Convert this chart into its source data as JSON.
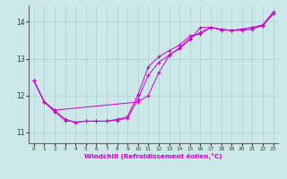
{
  "xlabel": "Windchill (Refroidissement éolien,°C)",
  "xlim": [
    -0.5,
    23.5
  ],
  "ylim": [
    10.7,
    14.45
  ],
  "yticks": [
    11,
    12,
    13,
    14
  ],
  "xticks": [
    0,
    1,
    2,
    3,
    4,
    5,
    6,
    7,
    8,
    9,
    10,
    11,
    12,
    13,
    14,
    15,
    16,
    17,
    18,
    19,
    20,
    21,
    22,
    23
  ],
  "bg_color": "#cce8e8",
  "grid_color": "#aad0d0",
  "line_color": "#cc00cc",
  "line1_x": [
    0,
    1,
    2,
    3,
    4,
    5,
    6,
    7,
    8,
    9,
    10,
    11,
    12,
    13,
    14,
    15,
    16,
    17,
    18,
    19,
    20,
    21,
    22,
    23
  ],
  "line1_y": [
    12.4,
    11.82,
    11.55,
    11.32,
    11.27,
    11.3,
    11.3,
    11.3,
    11.32,
    11.38,
    11.9,
    12.55,
    12.9,
    13.1,
    13.27,
    13.52,
    13.85,
    13.85,
    13.8,
    13.77,
    13.77,
    13.8,
    13.9,
    14.22
  ],
  "line2_x": [
    0,
    1,
    2,
    10,
    11,
    12,
    13,
    14,
    15,
    16,
    17,
    18,
    19,
    20,
    21,
    22,
    23
  ],
  "line2_y": [
    12.4,
    11.82,
    11.6,
    11.82,
    12.0,
    12.62,
    13.08,
    13.3,
    13.55,
    13.72,
    13.85,
    13.78,
    13.77,
    13.8,
    13.85,
    13.9,
    14.22
  ],
  "line3_x": [
    0,
    1,
    2,
    3,
    4,
    5,
    6,
    7,
    8,
    9,
    10,
    11,
    12,
    13,
    14,
    15,
    16,
    17,
    18,
    19,
    20,
    21,
    22,
    23
  ],
  "line3_y": [
    12.4,
    11.82,
    11.6,
    11.35,
    11.27,
    11.3,
    11.3,
    11.3,
    11.35,
    11.42,
    12.02,
    12.78,
    13.05,
    13.22,
    13.37,
    13.62,
    13.67,
    13.85,
    13.8,
    13.77,
    13.8,
    13.85,
    13.92,
    14.27
  ]
}
